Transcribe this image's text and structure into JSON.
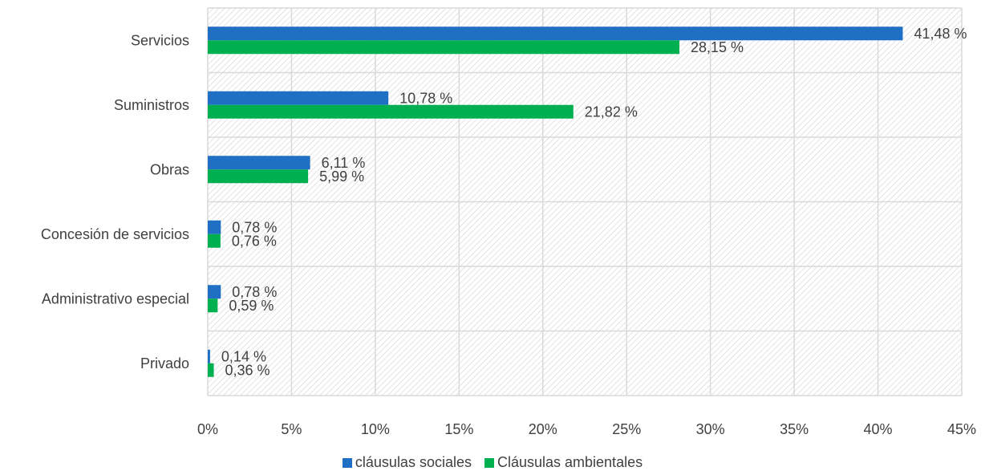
{
  "chart_data": {
    "type": "bar",
    "orientation": "horizontal",
    "categories": [
      "Servicios",
      "Suministros",
      "Obras",
      "Concesión de servicios",
      "Administrativo especial",
      "Privado"
    ],
    "series": [
      {
        "name": "cláusulas sociales",
        "color": "#1F6FC5",
        "values": [
          41.48,
          10.78,
          6.11,
          0.78,
          0.78,
          0.14
        ],
        "labels": [
          "41,48 %",
          "10,78 %",
          "6,11 %",
          "0,78 %",
          "0,78 %",
          "0,14 %"
        ]
      },
      {
        "name": "Cláusulas ambientales",
        "color": "#00B050",
        "values": [
          28.15,
          21.82,
          5.99,
          0.76,
          0.59,
          0.36
        ],
        "labels": [
          "28,15 %",
          "21,82 %",
          "5,99 %",
          "0,76 %",
          "0,59 %",
          "0,36 %"
        ]
      }
    ],
    "xlim": [
      0,
      45
    ],
    "xticks": [
      "0%",
      "5%",
      "10%",
      "15%",
      "20%",
      "25%",
      "30%",
      "35%",
      "40%",
      "45%"
    ],
    "grid": true,
    "legend_position": "bottom",
    "title": "",
    "xlabel": "",
    "ylabel": ""
  }
}
